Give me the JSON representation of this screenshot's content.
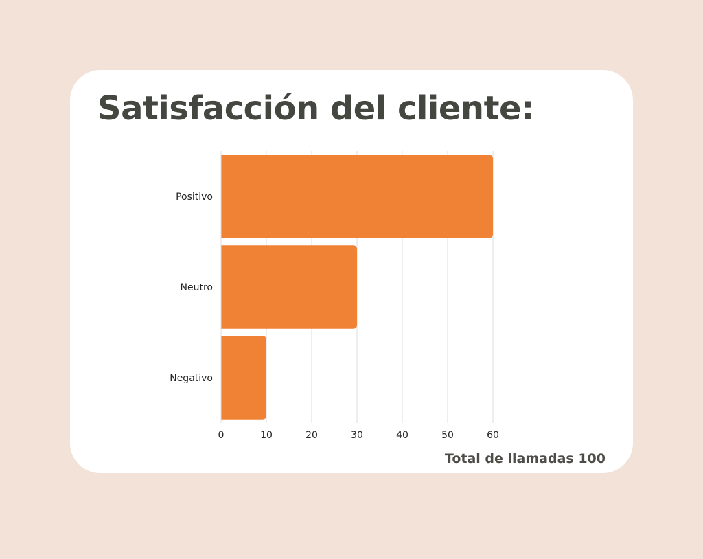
{
  "title": "Satisfacción del cliente:",
  "footnote": "Total de llamadas 100",
  "colors": {
    "background": "#f2e2d8",
    "card": "#ffffff",
    "bar": "#f08236",
    "text": "#444740",
    "grid": "#dcdcdc"
  },
  "chart_data": {
    "type": "bar",
    "orientation": "horizontal",
    "categories": [
      "Positivo",
      "Neutro",
      "Negativo"
    ],
    "values": [
      60,
      30,
      10
    ],
    "xlim": [
      0,
      60
    ],
    "xticks": [
      0,
      10,
      20,
      30,
      40,
      50,
      60
    ],
    "grid": true,
    "title": "Satisfacción del cliente:",
    "xlabel": "",
    "ylabel": ""
  }
}
